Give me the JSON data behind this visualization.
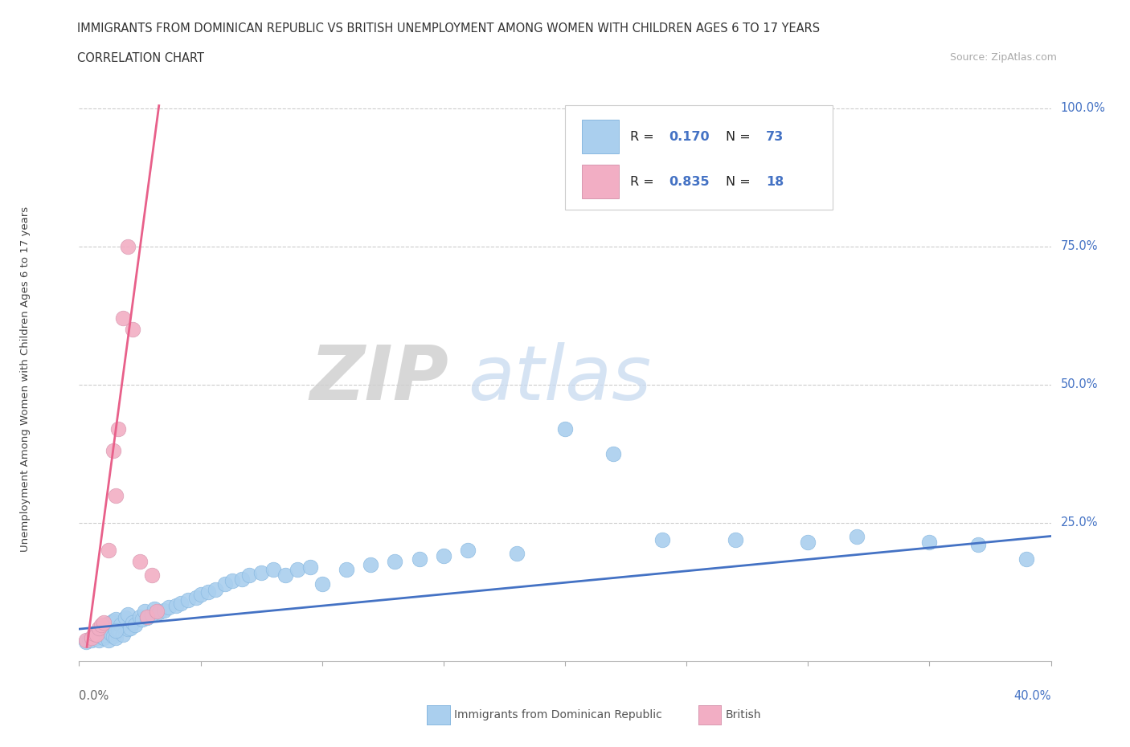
{
  "title1": "IMMIGRANTS FROM DOMINICAN REPUBLIC VS BRITISH UNEMPLOYMENT AMONG WOMEN WITH CHILDREN AGES 6 TO 17 YEARS",
  "title2": "CORRELATION CHART",
  "source": "Source: ZipAtlas.com",
  "ylabel_label": "Unemployment Among Women with Children Ages 6 to 17 years",
  "xlim": [
    0.0,
    0.4
  ],
  "ylim": [
    0.0,
    1.02
  ],
  "blue_R": "0.170",
  "blue_N": "73",
  "pink_R": "0.835",
  "pink_N": "18",
  "blue_color": "#aacfee",
  "pink_color": "#f2aec4",
  "blue_edge_color": "#88b8e0",
  "pink_edge_color": "#d898b0",
  "blue_line_color": "#4472c4",
  "pink_line_color": "#e8608a",
  "legend_blue_label": "Immigrants from Dominican Republic",
  "legend_pink_label": "British",
  "blue_scatter_x": [
    0.003,
    0.004,
    0.005,
    0.006,
    0.007,
    0.007,
    0.008,
    0.008,
    0.009,
    0.009,
    0.01,
    0.01,
    0.011,
    0.012,
    0.012,
    0.013,
    0.013,
    0.014,
    0.014,
    0.015,
    0.015,
    0.016,
    0.017,
    0.018,
    0.019,
    0.02,
    0.02,
    0.021,
    0.022,
    0.023,
    0.025,
    0.026,
    0.027,
    0.028,
    0.03,
    0.031,
    0.033,
    0.035,
    0.037,
    0.04,
    0.042,
    0.045,
    0.048,
    0.05,
    0.053,
    0.056,
    0.06,
    0.063,
    0.067,
    0.07,
    0.075,
    0.08,
    0.085,
    0.09,
    0.095,
    0.1,
    0.11,
    0.12,
    0.13,
    0.14,
    0.15,
    0.16,
    0.18,
    0.2,
    0.22,
    0.24,
    0.27,
    0.3,
    0.32,
    0.35,
    0.37,
    0.39,
    0.015
  ],
  "blue_scatter_y": [
    0.035,
    0.04,
    0.038,
    0.045,
    0.042,
    0.05,
    0.038,
    0.055,
    0.045,
    0.06,
    0.042,
    0.065,
    0.048,
    0.038,
    0.068,
    0.05,
    0.07,
    0.045,
    0.072,
    0.042,
    0.075,
    0.055,
    0.065,
    0.048,
    0.078,
    0.058,
    0.085,
    0.06,
    0.07,
    0.065,
    0.08,
    0.075,
    0.09,
    0.078,
    0.085,
    0.095,
    0.088,
    0.092,
    0.098,
    0.1,
    0.105,
    0.11,
    0.115,
    0.12,
    0.125,
    0.13,
    0.14,
    0.145,
    0.148,
    0.155,
    0.16,
    0.165,
    0.155,
    0.165,
    0.17,
    0.14,
    0.165,
    0.175,
    0.18,
    0.185,
    0.19,
    0.2,
    0.195,
    0.42,
    0.375,
    0.22,
    0.22,
    0.215,
    0.225,
    0.215,
    0.21,
    0.185,
    0.055
  ],
  "pink_scatter_x": [
    0.003,
    0.005,
    0.006,
    0.007,
    0.008,
    0.009,
    0.01,
    0.012,
    0.014,
    0.015,
    0.016,
    0.018,
    0.02,
    0.022,
    0.025,
    0.028,
    0.03,
    0.032
  ],
  "pink_scatter_y": [
    0.038,
    0.042,
    0.05,
    0.048,
    0.06,
    0.065,
    0.07,
    0.2,
    0.38,
    0.3,
    0.42,
    0.62,
    0.75,
    0.6,
    0.18,
    0.08,
    0.155,
    0.09
  ],
  "blue_reg_slope": 0.42,
  "blue_reg_intercept": 0.058,
  "pink_reg_slope": 33.0,
  "pink_reg_intercept": -0.08
}
